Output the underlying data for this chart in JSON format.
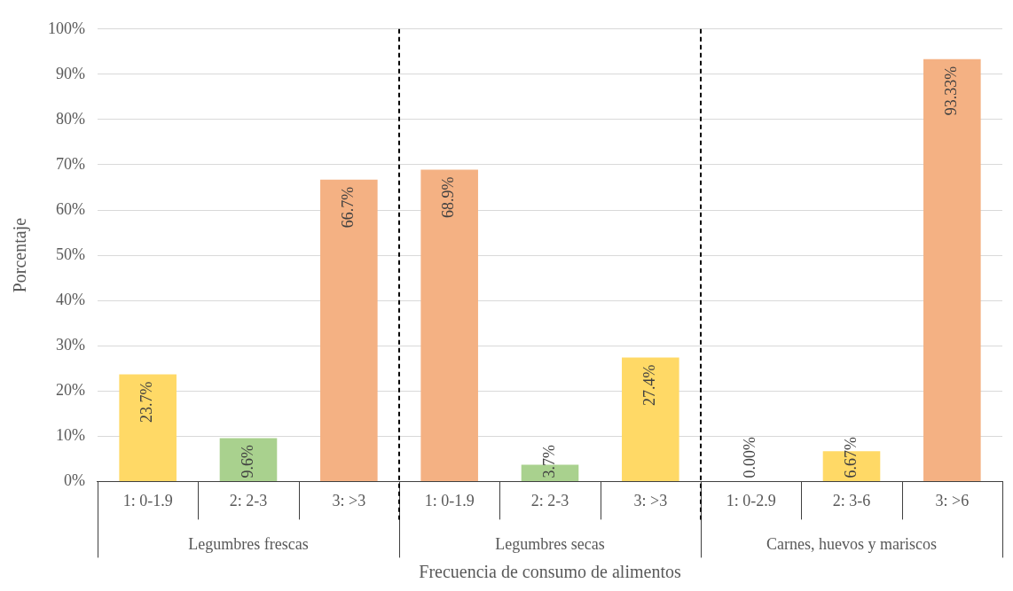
{
  "chart_data": {
    "type": "bar",
    "xlabel": "Frecuencia de consumo de alimentos",
    "ylabel": "Porcentaje",
    "categories": [
      "1: 0-1.9",
      "2: 2-3",
      "3: >3",
      "1: 0-1.9",
      "2: 2-3",
      "3: >3",
      "1: 0-2.9",
      "2: 3-6",
      "3: >6"
    ],
    "values": [
      23.7,
      9.6,
      66.7,
      68.9,
      3.7,
      27.4,
      0,
      6.67,
      93.33
    ],
    "colors": [
      "#ffd966",
      "#a9d18e",
      "#f4b183",
      "#f4b183",
      "#a9d18e",
      "#ffd966",
      "#ffd966",
      "#ffd966",
      "#f4b183"
    ],
    "value_labels": [
      "23.7%",
      "9.6%",
      "66.7%",
      "68.9%",
      "3.7%",
      "27.4%",
      "0.00%",
      "6.67%",
      "93.33%"
    ],
    "annotations": [
      "Legumbres frescas",
      "Legumbres secas",
      "Carnes, huevos y mariscos"
    ],
    "ylim": [
      0,
      100
    ],
    "yticks": [
      {
        "value": 0,
        "label": "0%"
      },
      {
        "value": 10,
        "label": "10%"
      },
      {
        "value": 20,
        "label": "20%"
      },
      {
        "value": 30,
        "label": "30%"
      },
      {
        "value": 40,
        "label": "40%"
      },
      {
        "value": 50,
        "label": "50%"
      },
      {
        "value": 60,
        "label": "60%"
      },
      {
        "value": 70,
        "label": "70%"
      },
      {
        "value": 80,
        "label": "80%"
      },
      {
        "value": 90,
        "label": "90%"
      },
      {
        "value": 100,
        "label": "100%"
      }
    ],
    "grid": "y",
    "legend": false
  }
}
